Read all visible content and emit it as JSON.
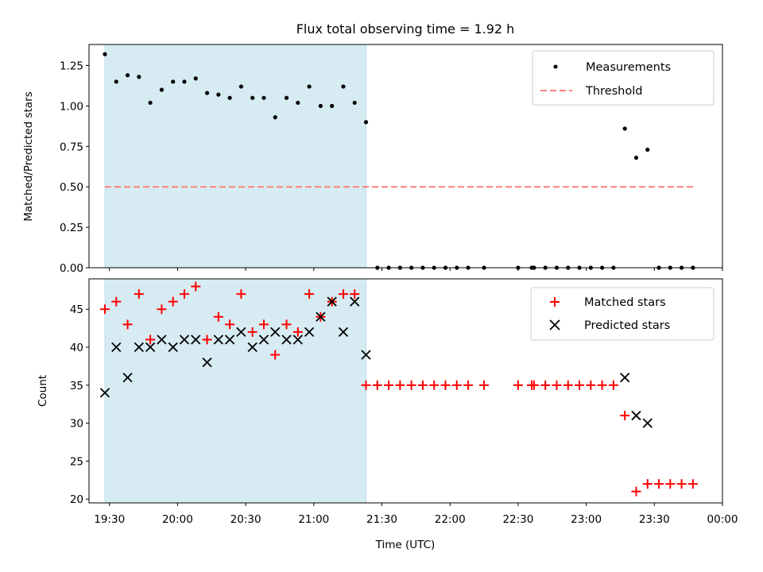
{
  "chart_data": [
    {
      "type": "scatter",
      "title": "Flux total observing time = 1.92 h",
      "xlabel": "",
      "ylabel": "Matched/Predicted stars",
      "xlim": [
        "19:21",
        "00:00"
      ],
      "ylim": [
        0,
        1.38
      ],
      "yticks": [
        "0.00",
        "0.25",
        "0.50",
        "0.75",
        "1.00",
        "1.25"
      ],
      "shaded_region": {
        "start": "19:28",
        "end": "21:23",
        "color": "#add8e6"
      },
      "legend_position": "top-right",
      "series": [
        {
          "name": "Measurements",
          "marker": "dot",
          "color": "#000000",
          "points": [
            [
              "19:28",
              1.32
            ],
            [
              "19:33",
              1.15
            ],
            [
              "19:38",
              1.19
            ],
            [
              "19:43",
              1.18
            ],
            [
              "19:48",
              1.02
            ],
            [
              "19:53",
              1.1
            ],
            [
              "19:58",
              1.15
            ],
            [
              "20:03",
              1.15
            ],
            [
              "20:08",
              1.17
            ],
            [
              "20:13",
              1.08
            ],
            [
              "20:18",
              1.07
            ],
            [
              "20:23",
              1.05
            ],
            [
              "20:28",
              1.12
            ],
            [
              "20:33",
              1.05
            ],
            [
              "20:38",
              1.05
            ],
            [
              "20:43",
              0.93
            ],
            [
              "20:48",
              1.05
            ],
            [
              "20:53",
              1.02
            ],
            [
              "20:58",
              1.12
            ],
            [
              "21:03",
              1.0
            ],
            [
              "21:08",
              1.0
            ],
            [
              "21:13",
              1.12
            ],
            [
              "21:18",
              1.02
            ],
            [
              "21:23",
              0.9
            ],
            [
              "21:28",
              0
            ],
            [
              "21:33",
              0
            ],
            [
              "21:38",
              0
            ],
            [
              "21:43",
              0
            ],
            [
              "21:48",
              0
            ],
            [
              "21:53",
              0
            ],
            [
              "21:58",
              0
            ],
            [
              "22:03",
              0
            ],
            [
              "22:08",
              0
            ],
            [
              "22:15",
              0
            ],
            [
              "22:30",
              0
            ],
            [
              "22:36",
              0
            ],
            [
              "22:37",
              0
            ],
            [
              "22:42",
              0
            ],
            [
              "22:47",
              0
            ],
            [
              "22:52",
              0
            ],
            [
              "22:57",
              0
            ],
            [
              "23:02",
              0
            ],
            [
              "23:07",
              0
            ],
            [
              "23:12",
              0
            ],
            [
              "23:17",
              0.86
            ],
            [
              "23:22",
              0.68
            ],
            [
              "23:27",
              0.73
            ],
            [
              "23:32",
              0
            ],
            [
              "23:37",
              0
            ],
            [
              "23:42",
              0
            ],
            [
              "23:47",
              0
            ]
          ]
        },
        {
          "name": "Threshold",
          "marker": "dashed-line",
          "color": "#ff7f7f",
          "y": 0.5,
          "x_range": [
            "19:28",
            "23:47"
          ]
        }
      ]
    },
    {
      "type": "scatter",
      "title": "",
      "xlabel": "Time (UTC)",
      "ylabel": "Count",
      "xlim": [
        "19:21",
        "00:00"
      ],
      "ylim": [
        19.5,
        49
      ],
      "yticks": [
        "20",
        "25",
        "30",
        "35",
        "40",
        "45"
      ],
      "xticks": [
        "19:30",
        "20:00",
        "20:30",
        "21:00",
        "21:30",
        "22:00",
        "22:30",
        "23:00",
        "23:30",
        "00:00"
      ],
      "shaded_region": {
        "start": "19:28",
        "end": "21:23",
        "color": "#add8e6"
      },
      "legend_position": "top-right",
      "series": [
        {
          "name": "Matched stars",
          "marker": "plus",
          "color": "#ff0000",
          "points": [
            [
              "19:28",
              45
            ],
            [
              "19:33",
              46
            ],
            [
              "19:38",
              43
            ],
            [
              "19:43",
              47
            ],
            [
              "19:48",
              41
            ],
            [
              "19:53",
              45
            ],
            [
              "19:58",
              46
            ],
            [
              "20:03",
              47
            ],
            [
              "20:08",
              48
            ],
            [
              "20:13",
              41
            ],
            [
              "20:18",
              44
            ],
            [
              "20:23",
              43
            ],
            [
              "20:28",
              47
            ],
            [
              "20:33",
              42
            ],
            [
              "20:38",
              43
            ],
            [
              "20:43",
              39
            ],
            [
              "20:48",
              43
            ],
            [
              "20:53",
              42
            ],
            [
              "20:58",
              47
            ],
            [
              "21:03",
              44
            ],
            [
              "21:08",
              46
            ],
            [
              "21:13",
              47
            ],
            [
              "21:18",
              47
            ],
            [
              "21:23",
              35
            ],
            [
              "21:28",
              35
            ],
            [
              "21:33",
              35
            ],
            [
              "21:38",
              35
            ],
            [
              "21:43",
              35
            ],
            [
              "21:48",
              35
            ],
            [
              "21:53",
              35
            ],
            [
              "21:58",
              35
            ],
            [
              "22:03",
              35
            ],
            [
              "22:08",
              35
            ],
            [
              "22:15",
              35
            ],
            [
              "22:30",
              35
            ],
            [
              "22:36",
              35
            ],
            [
              "22:37",
              35
            ],
            [
              "22:42",
              35
            ],
            [
              "22:47",
              35
            ],
            [
              "22:52",
              35
            ],
            [
              "22:57",
              35
            ],
            [
              "23:02",
              35
            ],
            [
              "23:07",
              35
            ],
            [
              "23:12",
              35
            ],
            [
              "23:17",
              31
            ],
            [
              "23:22",
              21
            ],
            [
              "23:27",
              22
            ],
            [
              "23:32",
              22
            ],
            [
              "23:37",
              22
            ],
            [
              "23:42",
              22
            ],
            [
              "23:47",
              22
            ]
          ]
        },
        {
          "name": "Predicted stars",
          "marker": "x",
          "color": "#000000",
          "points": [
            [
              "19:28",
              34
            ],
            [
              "19:33",
              40
            ],
            [
              "19:38",
              36
            ],
            [
              "19:43",
              40
            ],
            [
              "19:48",
              40
            ],
            [
              "19:53",
              41
            ],
            [
              "19:58",
              40
            ],
            [
              "20:03",
              41
            ],
            [
              "20:08",
              41
            ],
            [
              "20:13",
              38
            ],
            [
              "20:18",
              41
            ],
            [
              "20:23",
              41
            ],
            [
              "20:28",
              42
            ],
            [
              "20:33",
              40
            ],
            [
              "20:38",
              41
            ],
            [
              "20:43",
              42
            ],
            [
              "20:48",
              41
            ],
            [
              "20:53",
              41
            ],
            [
              "20:58",
              42
            ],
            [
              "21:03",
              44
            ],
            [
              "21:08",
              46
            ],
            [
              "21:13",
              42
            ],
            [
              "21:18",
              46
            ],
            [
              "21:23",
              39
            ],
            [
              "23:17",
              36
            ],
            [
              "23:22",
              31
            ],
            [
              "23:27",
              30
            ]
          ]
        }
      ]
    }
  ]
}
